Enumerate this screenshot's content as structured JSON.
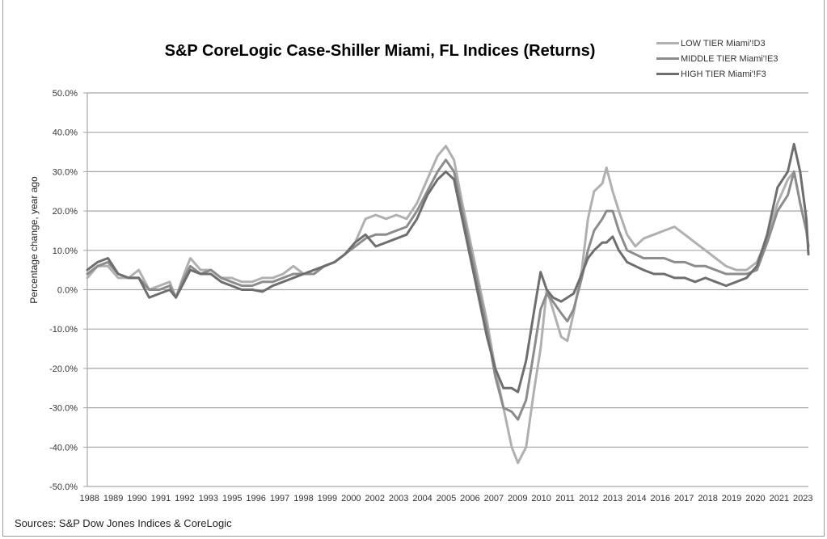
{
  "chart_data": {
    "type": "line",
    "title": "S&P CoreLogic Case-Shiller Miami, FL Indices (Returns)",
    "xlabel": "",
    "ylabel": "Percentage change, year ago",
    "source": "Sources: S&P Dow Jones Indices & CoreLogic",
    "ylim": [
      -50,
      50
    ],
    "xlim": [
      1988,
      2023
    ],
    "grid": true,
    "legend_position": "top-right",
    "y_ticks": [
      "50.0%",
      "40.0%",
      "30.0%",
      "20.0%",
      "10.0%",
      "0.0%",
      "-10.0%",
      "-20.0%",
      "-30.0%",
      "-40.0%",
      "-50.0%"
    ],
    "y_tick_values": [
      50,
      40,
      30,
      20,
      10,
      0,
      -10,
      -20,
      -30,
      -40,
      -50
    ],
    "x_ticks": [
      "1988",
      "1989",
      "1990",
      "1991",
      "1992",
      "1993",
      "1995",
      "1996",
      "1997",
      "1998",
      "1999",
      "2000",
      "2002",
      "2003",
      "2004",
      "2005",
      "2006",
      "2007",
      "2009",
      "2010",
      "2011",
      "2012",
      "2013",
      "2014",
      "2016",
      "2017",
      "2018",
      "2019",
      "2020",
      "2021",
      "2023"
    ],
    "series": [
      {
        "name": "LOW TIER Miami'!D3",
        "color": "#b0b0b0",
        "x": [
          1988,
          1988.5,
          1989,
          1989.5,
          1990,
          1990.5,
          1991,
          1991.5,
          1992,
          1992.3,
          1992.7,
          1993,
          1993.5,
          1994,
          1994.5,
          1995,
          1995.5,
          1996,
          1996.5,
          1997,
          1997.5,
          1998,
          1998.5,
          1999,
          1999.5,
          2000,
          2000.5,
          2001,
          2001.5,
          2002,
          2002.5,
          2003,
          2003.5,
          2004,
          2004.5,
          2005,
          2005.4,
          2005.8,
          2006.2,
          2006.6,
          2007,
          2007.4,
          2007.8,
          2008.2,
          2008.6,
          2008.9,
          2009.3,
          2009.7,
          2010,
          2010.3,
          2010.6,
          2011,
          2011.3,
          2011.6,
          2012,
          2012.3,
          2012.6,
          2013,
          2013.2,
          2013.5,
          2013.8,
          2014.2,
          2014.6,
          2015,
          2015.5,
          2016,
          2016.5,
          2017,
          2017.5,
          2018,
          2018.5,
          2019,
          2019.5,
          2020,
          2020.5,
          2021,
          2021.5,
          2022,
          2022.3,
          2022.6,
          2022.9,
          2023
        ],
        "values": [
          3,
          6,
          6,
          3,
          3,
          5,
          0,
          1,
          2,
          -2,
          4,
          8,
          5,
          5,
          3,
          3,
          2,
          2,
          3,
          3,
          4,
          6,
          4,
          4,
          6,
          7,
          9,
          12,
          18,
          19,
          18,
          19,
          18,
          22,
          28,
          34,
          36.5,
          33,
          22,
          12,
          2,
          -8,
          -20,
          -30,
          -40,
          -44,
          -40,
          -25,
          -15,
          0,
          -5,
          -12,
          -13,
          -6,
          5,
          18,
          25,
          27,
          31,
          25,
          20,
          14,
          11,
          13,
          14,
          15,
          16,
          14,
          12,
          10,
          8,
          6,
          5,
          5,
          7,
          13,
          22,
          28,
          30,
          22,
          15,
          11
        ]
      },
      {
        "name": "MIDDLE TIER Miami'!E3",
        "color": "#8c8c8c",
        "x": [
          1988,
          1988.5,
          1989,
          1989.5,
          1990,
          1990.5,
          1991,
          1991.5,
          1992,
          1992.3,
          1992.7,
          1993,
          1993.5,
          1994,
          1994.5,
          1995,
          1995.5,
          1996,
          1996.5,
          1997,
          1997.5,
          1998,
          1998.5,
          1999,
          1999.5,
          2000,
          2000.5,
          2001,
          2001.5,
          2002,
          2002.5,
          2003,
          2003.5,
          2004,
          2004.5,
          2005,
          2005.4,
          2005.8,
          2006.2,
          2006.6,
          2007,
          2007.4,
          2007.8,
          2008.2,
          2008.6,
          2008.9,
          2009.3,
          2009.7,
          2010,
          2010.3,
          2010.6,
          2011,
          2011.3,
          2011.6,
          2012,
          2012.3,
          2012.6,
          2013,
          2013.2,
          2013.5,
          2013.8,
          2014.2,
          2014.6,
          2015,
          2015.5,
          2016,
          2016.5,
          2017,
          2017.5,
          2018,
          2018.5,
          2019,
          2019.5,
          2020,
          2020.5,
          2021,
          2021.5,
          2022,
          2022.3,
          2022.6,
          2022.9,
          2023
        ],
        "values": [
          4,
          6,
          7,
          4,
          3,
          3,
          0,
          0,
          1,
          -2,
          3,
          6,
          4,
          5,
          3,
          2,
          1,
          1,
          2,
          2,
          3,
          4,
          4,
          4,
          6,
          7,
          9,
          11,
          13,
          14,
          14,
          15,
          16,
          20,
          25,
          30,
          33,
          30,
          20,
          10,
          0,
          -10,
          -22,
          -30,
          -31,
          -33,
          -28,
          -15,
          -5,
          -1,
          -3,
          -6,
          -8,
          -5,
          3,
          10,
          15,
          18,
          20,
          20,
          15,
          10,
          9,
          8,
          8,
          8,
          7,
          7,
          6,
          6,
          5,
          4,
          4,
          4,
          5,
          12,
          20,
          24,
          30,
          22,
          15,
          11
        ]
      },
      {
        "name": "HIGH TIER Miami'!F3",
        "color": "#6e6e6e",
        "x": [
          1988,
          1988.5,
          1989,
          1989.5,
          1990,
          1990.5,
          1991,
          1991.5,
          1992,
          1992.3,
          1992.7,
          1993,
          1993.5,
          1994,
          1994.5,
          1995,
          1995.5,
          1996,
          1996.5,
          1997,
          1997.5,
          1998,
          1998.5,
          1999,
          1999.5,
          2000,
          2000.5,
          2001,
          2001.5,
          2002,
          2002.5,
          2003,
          2003.5,
          2004,
          2004.5,
          2005,
          2005.4,
          2005.8,
          2006.2,
          2006.6,
          2007,
          2007.4,
          2007.8,
          2008.2,
          2008.6,
          2008.9,
          2009.3,
          2009.7,
          2010,
          2010.3,
          2010.6,
          2011,
          2011.3,
          2011.6,
          2012,
          2012.3,
          2012.6,
          2013,
          2013.2,
          2013.5,
          2013.8,
          2014.2,
          2014.6,
          2015,
          2015.5,
          2016,
          2016.5,
          2017,
          2017.5,
          2018,
          2018.5,
          2019,
          2019.5,
          2020,
          2020.5,
          2021,
          2021.5,
          2022,
          2022.3,
          2022.6,
          2022.9,
          2023
        ],
        "values": [
          5,
          7,
          8,
          4,
          3,
          3,
          -2,
          -1,
          0,
          -2,
          2,
          5,
          4,
          4,
          2,
          1,
          0,
          0,
          -0.5,
          1,
          2,
          3,
          4,
          5,
          6,
          7,
          9,
          12,
          14,
          11,
          12,
          13,
          14,
          18,
          24,
          28,
          30,
          28,
          18,
          8,
          -2,
          -12,
          -20,
          -25,
          -25,
          -26,
          -18,
          -5,
          4.5,
          0,
          -2,
          -3,
          -2,
          -1,
          4,
          8,
          10,
          12,
          12,
          13.5,
          10,
          7,
          6,
          5,
          4,
          4,
          3,
          3,
          2,
          3,
          2,
          1,
          2,
          3,
          6,
          14,
          26,
          30,
          37,
          30,
          18,
          9
        ]
      }
    ]
  }
}
